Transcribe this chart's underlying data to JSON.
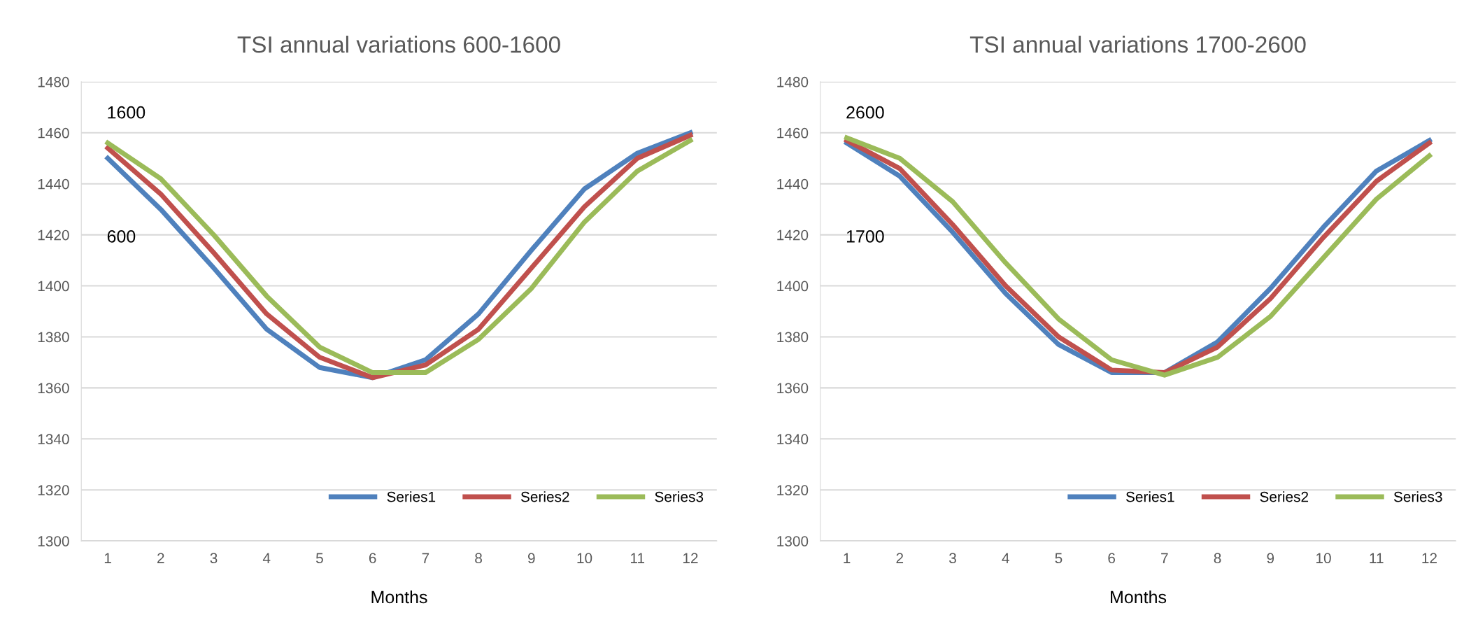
{
  "chart_data": [
    {
      "type": "line",
      "title": "TSI annual variations 600-1600",
      "xlabel": "Months",
      "categories": [
        "1",
        "2",
        "3",
        "4",
        "5",
        "6",
        "7",
        "8",
        "9",
        "10",
        "11",
        "12"
      ],
      "ylim": [
        1300,
        1480
      ],
      "yticks": [
        1300,
        1320,
        1340,
        1360,
        1380,
        1400,
        1420,
        1440,
        1460,
        1480
      ],
      "grid": "y",
      "legend": "bottom right",
      "marker": "none",
      "line_style": "solid",
      "annotations": [
        "1600",
        "600"
      ],
      "series": [
        {
          "name": "Series1",
          "color": "#4f81bd",
          "values": [
            1450,
            1430,
            1407,
            1383,
            1368,
            1364,
            1371,
            1389,
            1414,
            1438,
            1452,
            1460
          ]
        },
        {
          "name": "Series2",
          "color": "#c0504d",
          "values": [
            1454,
            1436,
            1413,
            1389,
            1372,
            1364,
            1369,
            1383,
            1407,
            1431,
            1450,
            1459
          ]
        },
        {
          "name": "Series3",
          "color": "#9bbb59",
          "values": [
            1456,
            1442,
            1420,
            1396,
            1376,
            1366,
            1366,
            1379,
            1399,
            1425,
            1445,
            1457
          ]
        }
      ]
    },
    {
      "type": "line",
      "title": "TSI annual variations 1700-2600",
      "xlabel": "Months",
      "categories": [
        "1",
        "2",
        "3",
        "4",
        "5",
        "6",
        "7",
        "8",
        "9",
        "10",
        "11",
        "12"
      ],
      "ylim": [
        1300,
        1480
      ],
      "yticks": [
        1300,
        1320,
        1340,
        1360,
        1380,
        1400,
        1420,
        1440,
        1460,
        1480
      ],
      "grid": "y",
      "legend": "bottom right",
      "marker": "none",
      "line_style": "solid",
      "annotations": [
        "2600",
        "1700"
      ],
      "series": [
        {
          "name": "Series1",
          "color": "#4f81bd",
          "values": [
            1456,
            1443,
            1421,
            1397,
            1377,
            1366,
            1366,
            1378,
            1399,
            1423,
            1445,
            1457
          ]
        },
        {
          "name": "Series2",
          "color": "#c0504d",
          "values": [
            1457,
            1446,
            1424,
            1400,
            1380,
            1367,
            1366,
            1376,
            1395,
            1419,
            1441,
            1456
          ]
        },
        {
          "name": "Series3",
          "color": "#9bbb59",
          "values": [
            1458,
            1450,
            1433,
            1409,
            1387,
            1371,
            1365,
            1372,
            1388,
            1411,
            1434,
            1451
          ]
        }
      ]
    }
  ]
}
